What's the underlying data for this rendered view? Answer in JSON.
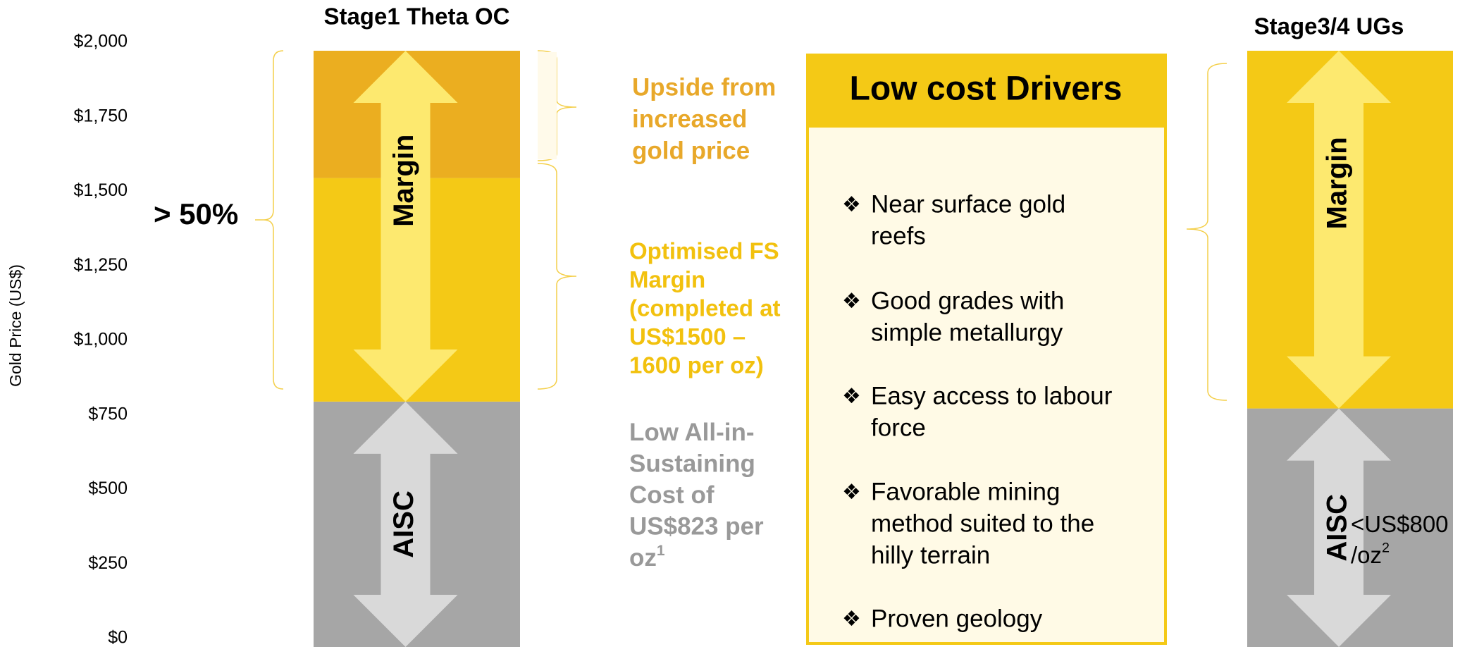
{
  "chart_data": {
    "type": "bar",
    "stacked": true,
    "categories": [
      "Stage1 Theta OC",
      "Stage3/4 UGs"
    ],
    "series": [
      {
        "name": "AISC",
        "color": "#a6a6a6",
        "arrow_color": "#d9d9d9",
        "values": [
          823,
          800
        ]
      },
      {
        "name": "Margin",
        "color": "#f4c916",
        "arrow_color": "#fde96f",
        "values": [
          750,
          1200
        ]
      },
      {
        "name": "Upside from increased gold price",
        "color": "#ebae20",
        "values": [
          427,
          null
        ]
      }
    ],
    "ylabel": "Gold Price (US$)",
    "ylim": [
      0,
      2000
    ],
    "yticks": [
      {
        "value": 0,
        "label": "$0"
      },
      {
        "value": 250,
        "label": "$250"
      },
      {
        "value": 500,
        "label": "$500"
      },
      {
        "value": 750,
        "label": "$750"
      },
      {
        "value": 1000,
        "label": "$1,000"
      },
      {
        "value": 1250,
        "label": "$1,250"
      },
      {
        "value": 1500,
        "label": "$1,500"
      },
      {
        "value": 1750,
        "label": "$1,750"
      },
      {
        "value": 2000,
        "label": "$2,000"
      }
    ],
    "annotations": {
      "margin_share": "> 50%",
      "upside": [
        "Upside from",
        "increased",
        "gold price"
      ],
      "optimised": [
        "Optimised FS",
        "Margin",
        "(completed at",
        "US$1500 –",
        "1600 per oz)"
      ],
      "aisc_stage1": {
        "lines": [
          "Low All-in-",
          "Sustaining",
          "Cost of",
          "US$823 per",
          "oz"
        ],
        "note": "1"
      },
      "aisc_stage3": {
        "lines": [
          "<US$800",
          "/oz"
        ],
        "note": "2"
      }
    },
    "drivers_box": {
      "title": "Low cost Drivers",
      "bullet": "❖",
      "items": [
        [
          "Near surface gold",
          "reefs"
        ],
        [
          "Good grades with",
          "simple metallurgy"
        ],
        [
          "Easy access to labour",
          "force"
        ],
        [
          "Favorable mining",
          "method suited to the",
          "hilly terrain"
        ],
        [
          "Proven geology"
        ]
      ]
    }
  }
}
